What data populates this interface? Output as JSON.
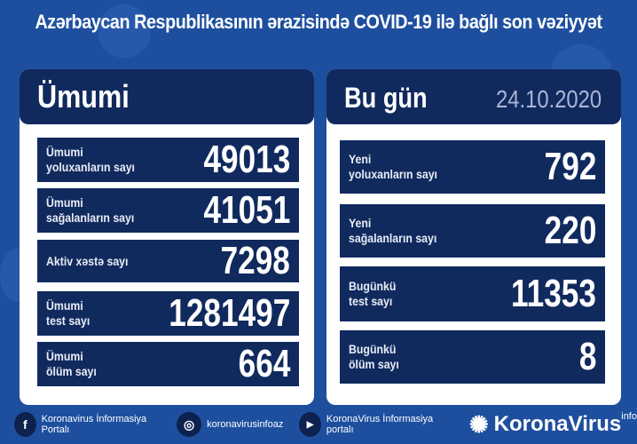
{
  "title": "Azərbaycan Respublikasının ərazisində COVID-19 ilə bağlı son vəziyyət",
  "left": {
    "heading": "Ümumi",
    "rows": [
      {
        "label1": "Ümumi",
        "label2": "yoluxanların sayı",
        "value": "49013"
      },
      {
        "label1": "Ümumi",
        "label2": "sağalanların sayı",
        "value": "41051"
      },
      {
        "label1": "Aktiv xəstə sayı",
        "label2": "",
        "value": "7298"
      },
      {
        "label1": "Ümumi",
        "label2": "test sayı",
        "value": "1281497"
      },
      {
        "label1": "Ümumi",
        "label2": "ölüm sayı",
        "value": "664"
      }
    ]
  },
  "right": {
    "heading": "Bu gün",
    "date": "24.10.2020",
    "rows": [
      {
        "label1": "Yeni",
        "label2": "yoluxanların sayı",
        "value": "792"
      },
      {
        "label1": "Yeni",
        "label2": "sağalanların sayı",
        "value": "220"
      },
      {
        "label1": "Bugünkü",
        "label2": "test sayı",
        "value": "11353"
      },
      {
        "label1": "Bugünkü",
        "label2": "ölüm sayı",
        "value": "8"
      }
    ]
  },
  "footer": {
    "facebook": "Koronavirus İnformasiya Portalı",
    "instagram": "koronavirusinfoaz",
    "youtube": "KoronaVirus İnformasiya portalı",
    "brand": "KoronaVirus",
    "brand_sup": "info",
    "facebook_icon": "f",
    "instagram_icon": "◎",
    "youtube_icon": "▶",
    "logo_icon": "✺"
  },
  "colors": {
    "background": "#1e4f9f",
    "panel_dark": "#112a5e",
    "card": "#ffffff"
  }
}
